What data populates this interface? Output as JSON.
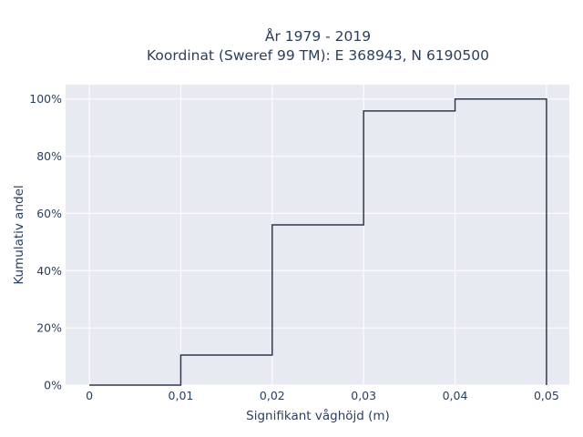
{
  "chart_data": {
    "type": "line",
    "line_shape": "step",
    "title": "År 1979 - 2019",
    "subtitle": "Koordinat (Sweref 99 TM): E 368943, N 6190500",
    "xlabel": "Signifikant våghöjd (m)",
    "ylabel": "Kumulativ andel",
    "xlim": [
      -0.0026,
      0.0525
    ],
    "ylim": [
      0,
      1.05
    ],
    "x_ticks": [
      0,
      0.01,
      0.02,
      0.03,
      0.04,
      0.05
    ],
    "x_tick_labels": [
      "0",
      "0,01",
      "0,02",
      "0,03",
      "0,04",
      "0,05"
    ],
    "y_ticks": [
      0,
      0.2,
      0.4,
      0.6,
      0.8,
      1.0
    ],
    "y_tick_labels": [
      "0%",
      "20%",
      "40%",
      "60%",
      "80%",
      "100%"
    ],
    "grid": true,
    "series": [
      {
        "x": [
          0,
          0.01,
          0.01,
          0.02,
          0.02,
          0.03,
          0.03,
          0.04,
          0.04,
          0.05,
          0.05
        ],
        "y": [
          0.0,
          0.0,
          0.105,
          0.105,
          0.56,
          0.56,
          0.958,
          0.958,
          1.0,
          1.0,
          0.0
        ],
        "color": "#2f3b4c"
      }
    ],
    "colors": {
      "plot_bg": "#e8eaf2",
      "grid": "#ffffff",
      "text": "#2a3f5f"
    }
  }
}
